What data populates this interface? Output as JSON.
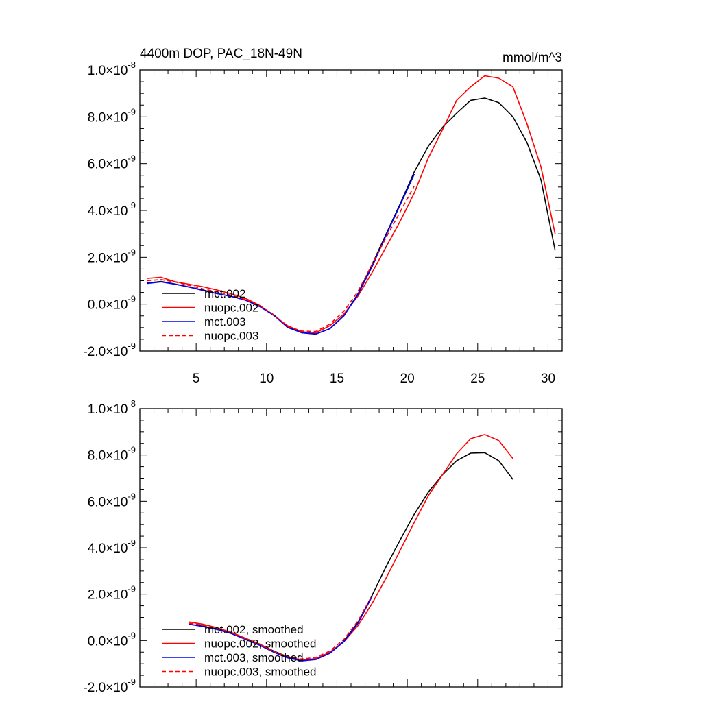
{
  "chart_data": [
    {
      "type": "line",
      "title": "4400m DOP, PAC_18N-49N",
      "units": "mmol/m^3",
      "xlim": [
        1,
        31
      ],
      "ylim": [
        -2e-09,
        1e-08
      ],
      "x_ticks": [
        5,
        10,
        15,
        20,
        25,
        30
      ],
      "x_tick_labels": [
        "5",
        "10",
        "15",
        "20",
        "25",
        "30"
      ],
      "y_ticks": [
        -2e-09,
        0.0,
        2e-09,
        4e-09,
        6e-09,
        8e-09,
        1e-08
      ],
      "y_tick_labels": [
        {
          "mantissa": "-2.0",
          "exponent": "-9"
        },
        {
          "mantissa": "0.0",
          "exponent": "-9"
        },
        {
          "mantissa": "2.0",
          "exponent": "-9"
        },
        {
          "mantissa": "4.0",
          "exponent": "-9"
        },
        {
          "mantissa": "6.0",
          "exponent": "-9"
        },
        {
          "mantissa": "8.0",
          "exponent": "-9"
        },
        {
          "mantissa": "1.0",
          "exponent": "-8"
        }
      ],
      "legend": "bottom-left",
      "series": [
        {
          "name": "mct.002",
          "color": "#000000",
          "dash": false,
          "x": [
            1.5,
            2.5,
            3.5,
            4.5,
            5.5,
            6.5,
            7.5,
            8.5,
            9.5,
            10.5,
            11.5,
            12.5,
            13.5,
            14.5,
            15.5,
            16.5,
            17.5,
            18.5,
            19.5,
            20.5,
            21.5,
            22.5,
            23.5,
            24.5,
            25.5,
            26.5,
            27.5,
            28.5,
            29.5,
            30.5
          ],
          "values": [
            9e-10,
            9.7e-10,
            8.6e-10,
            7.3e-10,
            6e-10,
            4.5e-10,
            3.3e-10,
            1.8e-10,
            -8e-11,
            -4.5e-10,
            -9.8e-10,
            -1.22e-09,
            -1.28e-09,
            -1.05e-09,
            -4.8e-10,
            4.5e-10,
            1.7e-09,
            3e-09,
            4.3e-09,
            5.65e-09,
            6.75e-09,
            7.55e-09,
            8.15e-09,
            8.7e-09,
            8.8e-09,
            8.6e-09,
            8e-09,
            6.9e-09,
            5.3e-09,
            2.3e-09
          ]
        },
        {
          "name": "nuopc.002",
          "color": "#ff0000",
          "dash": false,
          "x": [
            1.5,
            2.5,
            3.5,
            4.5,
            5.5,
            6.5,
            7.5,
            8.5,
            9.5,
            10.5,
            11.5,
            12.5,
            13.5,
            14.5,
            15.5,
            16.5,
            17.5,
            18.5,
            19.5,
            20.5,
            21.5,
            22.5,
            23.5,
            24.5,
            25.5,
            26.5,
            27.5,
            28.5,
            29.5,
            30.5
          ],
          "values": [
            1.1e-09,
            1.15e-09,
            9.6e-10,
            8.5e-10,
            7.4e-10,
            6e-10,
            4.4e-10,
            2.5e-10,
            -5e-11,
            -4.8e-10,
            -9.2e-10,
            -1.18e-09,
            -1.22e-09,
            -9.2e-10,
            -4.2e-10,
            3.5e-10,
            1.35e-09,
            2.45e-09,
            3.55e-09,
            4.75e-09,
            6.25e-09,
            7.45e-09,
            8.7e-09,
            9.28e-09,
            9.75e-09,
            9.65e-09,
            9.28e-09,
            7.7e-09,
            5.85e-09,
            3e-09
          ]
        },
        {
          "name": "mct.003",
          "color": "#0000ff",
          "dash": false,
          "x": [
            1.5,
            2.5,
            3.5,
            4.5,
            5.5,
            6.5,
            7.5,
            8.5,
            9.5,
            10.5,
            11.5,
            12.5,
            13.5,
            14.5,
            15.5,
            16.5,
            17.5,
            18.5,
            19.5,
            20.5
          ],
          "values": [
            8.8e-10,
            9.5e-10,
            8.5e-10,
            7.3e-10,
            5.8e-10,
            4.5e-10,
            3.3e-10,
            1.7e-10,
            -1e-10,
            -4.7e-10,
            -1e-09,
            -1.22e-09,
            -1.27e-09,
            -1.05e-09,
            -5e-10,
            4.2e-10,
            1.6e-09,
            2.95e-09,
            4.25e-09,
            5.55e-09
          ]
        },
        {
          "name": "nuopc.003",
          "color": "#ff0000",
          "dash": true,
          "x": [
            1.5,
            2.5,
            3.5,
            4.5,
            5.5,
            6.5,
            7.5,
            8.5,
            9.5,
            10.5,
            11.5,
            12.5,
            13.5,
            14.5,
            15.5,
            16.5,
            17.5,
            18.5,
            19.5,
            20.5
          ],
          "values": [
            1e-09,
            1.05e-09,
            9.5e-10,
            8e-10,
            6.5e-10,
            5.2e-10,
            3.8e-10,
            2e-10,
            -5e-11,
            -4.5e-10,
            -9.5e-10,
            -1.15e-09,
            -1.17e-09,
            -8.5e-10,
            -3e-10,
            5.5e-10,
            1.7e-09,
            2.85e-09,
            3.95e-09,
            5.05e-09
          ]
        }
      ]
    },
    {
      "type": "line",
      "title": "",
      "units": "",
      "xlim": [
        1,
        31
      ],
      "ylim": [
        -2e-09,
        1e-08
      ],
      "x_ticks": [
        5,
        10,
        15,
        20,
        25,
        30
      ],
      "x_tick_labels": [],
      "y_ticks": [
        -2e-09,
        0.0,
        2e-09,
        4e-09,
        6e-09,
        8e-09,
        1e-08
      ],
      "y_tick_labels": [
        {
          "mantissa": "-2.0",
          "exponent": "-9"
        },
        {
          "mantissa": "0.0",
          "exponent": "-9"
        },
        {
          "mantissa": "2.0",
          "exponent": "-9"
        },
        {
          "mantissa": "4.0",
          "exponent": "-9"
        },
        {
          "mantissa": "6.0",
          "exponent": "-9"
        },
        {
          "mantissa": "8.0",
          "exponent": "-9"
        },
        {
          "mantissa": "1.0",
          "exponent": "-8"
        }
      ],
      "legend": "bottom-left",
      "series": [
        {
          "name": "mct.002, smoothed",
          "color": "#000000",
          "dash": false,
          "x": [
            4.5,
            5.5,
            6.5,
            7.5,
            8.5,
            9.5,
            10.5,
            11.5,
            12.5,
            13.5,
            14.5,
            15.5,
            16.5,
            17.5,
            18.5,
            19.5,
            20.5,
            21.5,
            22.5,
            23.5,
            24.5,
            25.5,
            26.5,
            27.5
          ],
          "values": [
            7e-10,
            6.2e-10,
            5e-10,
            3.5e-10,
            1e-10,
            -1.5e-10,
            -4.5e-10,
            -7e-10,
            -8.5e-10,
            -8e-10,
            -5.5e-10,
            -2e-11,
            7.8e-10,
            1.95e-09,
            3.2e-09,
            4.35e-09,
            5.45e-09,
            6.4e-09,
            7.15e-09,
            7.75e-09,
            8.08e-09,
            8.1e-09,
            7.75e-09,
            6.95e-09
          ]
        },
        {
          "name": "nuopc.002, smoothed",
          "color": "#ff0000",
          "dash": false,
          "x": [
            4.5,
            5.5,
            6.5,
            7.5,
            8.5,
            9.5,
            10.5,
            11.5,
            12.5,
            13.5,
            14.5,
            15.5,
            16.5,
            17.5,
            18.5,
            19.5,
            20.5,
            21.5,
            22.5,
            23.5,
            24.5,
            25.5,
            26.5,
            27.5
          ],
          "values": [
            8e-10,
            7e-10,
            5.5e-10,
            3.5e-10,
            1e-10,
            -1.5e-10,
            -4.8e-10,
            -7.2e-10,
            -8.5e-10,
            -7.8e-10,
            -5e-10,
            -5e-11,
            6.5e-10,
            1.6e-09,
            2.7e-09,
            3.9e-09,
            5.1e-09,
            6.25e-09,
            7.15e-09,
            8.05e-09,
            8.7e-09,
            8.88e-09,
            8.62e-09,
            7.85e-09
          ]
        },
        {
          "name": "mct.003, smoothed",
          "color": "#0000ff",
          "dash": false,
          "x": [
            4.5,
            5.5,
            6.5,
            7.5,
            8.5,
            9.5,
            10.5,
            11.5,
            12.5,
            13.5,
            14.5,
            15.5,
            16.5,
            17.5
          ],
          "values": [
            7e-10,
            6e-10,
            4.7e-10,
            3e-10,
            5e-11,
            -2e-10,
            -5e-10,
            -7.5e-10,
            -8.8e-10,
            -8.2e-10,
            -5.5e-10,
            -5e-11,
            7.5e-10,
            1.9e-09
          ]
        },
        {
          "name": "nuopc.003, smoothed",
          "color": "#ff0000",
          "dash": true,
          "x": [
            4.5,
            5.5,
            6.5,
            7.5,
            8.5,
            9.5,
            10.5,
            11.5,
            12.5,
            13.5,
            14.5,
            15.5,
            16.5,
            17.5
          ],
          "values": [
            7.5e-10,
            6.6e-10,
            5.2e-10,
            3.3e-10,
            8e-11,
            -1.8e-10,
            -4.7e-10,
            -7e-10,
            -8e-10,
            -7.3e-10,
            -4.5e-10,
            5e-11,
            8.5e-10,
            1.95e-09
          ]
        }
      ]
    }
  ]
}
